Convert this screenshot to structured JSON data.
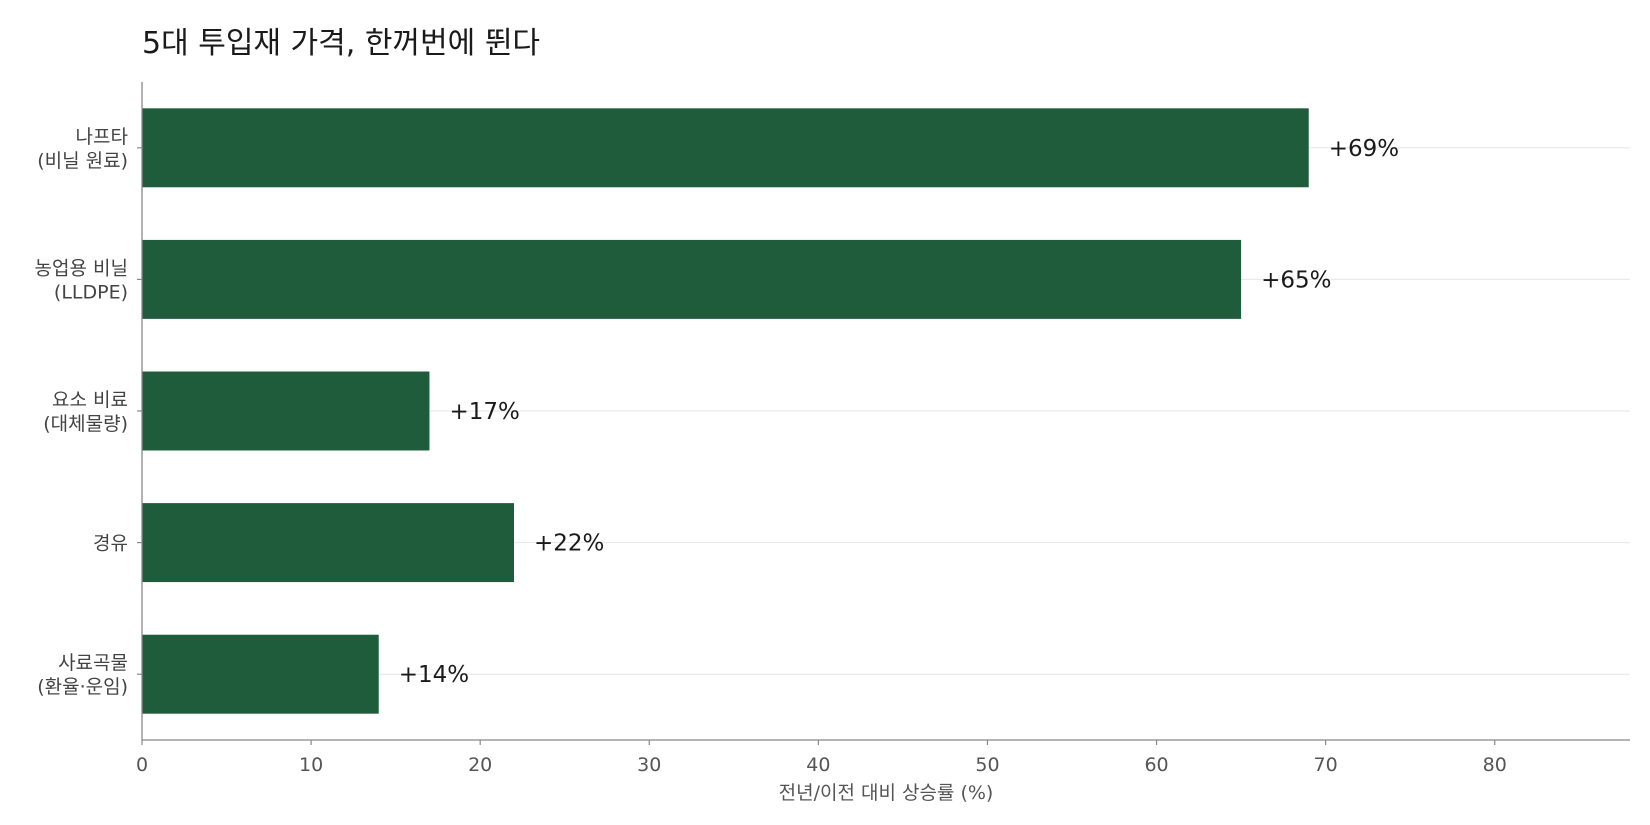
{
  "chart_data": {
    "type": "bar",
    "orientation": "horizontal",
    "title": "5대 투입재 가격, 한꺼번에 뛴다",
    "xlabel": "전년/이전 대비 상승률 (%)",
    "ylabel": "",
    "categories": [
      [
        "나프타",
        "(비닐 원료)"
      ],
      [
        "농업용 비닐",
        "(LLDPE)"
      ],
      [
        "요소 비료",
        "(대체물량)"
      ],
      [
        "경유"
      ],
      [
        "사료곡물",
        "(환율·운임)"
      ]
    ],
    "values": [
      69,
      65,
      17,
      22,
      14
    ],
    "data_labels": [
      "+69%",
      "+65%",
      "+17%",
      "+22%",
      "+14%"
    ],
    "xlim": [
      0,
      88
    ],
    "xticks": [
      0,
      10,
      20,
      30,
      40,
      50,
      60,
      70,
      80
    ],
    "grid": "horizontal",
    "bar_color": "#1f5c3b"
  }
}
